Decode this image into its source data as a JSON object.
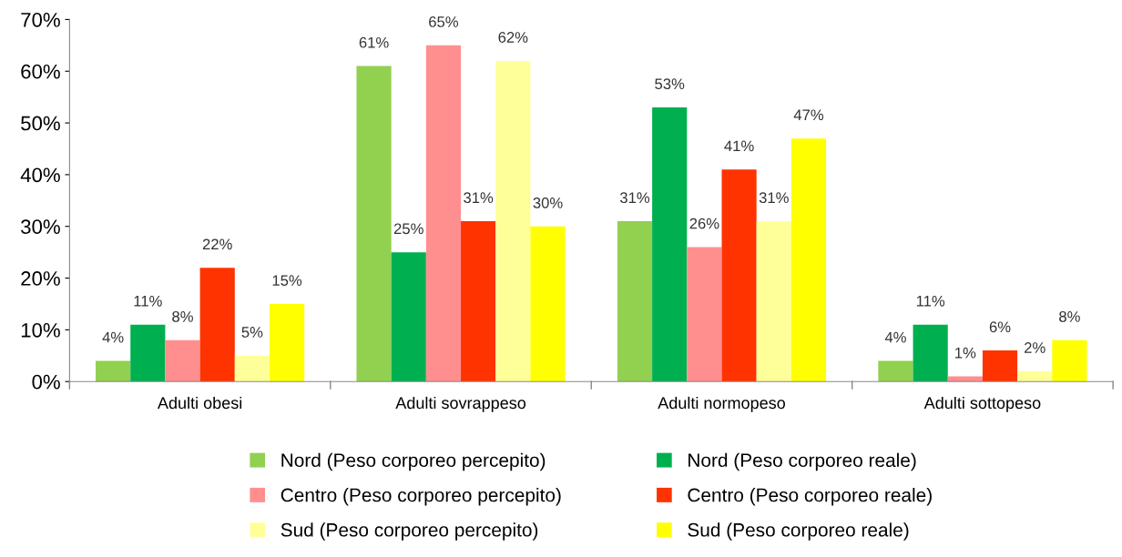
{
  "chart_data": {
    "type": "bar",
    "categories": [
      "Adulti obesi",
      "Adulti sovrappeso",
      "Adulti normopeso",
      "Adulti sottopeso"
    ],
    "ylim": [
      0,
      70
    ],
    "yticks": [
      {
        "value": 0,
        "label": "0%"
      },
      {
        "value": 10,
        "label": "10%"
      },
      {
        "value": 20,
        "label": "20%"
      },
      {
        "value": 30,
        "label": "30%"
      },
      {
        "value": 40,
        "label": "40%"
      },
      {
        "value": 50,
        "label": "50%"
      },
      {
        "value": 60,
        "label": "60%"
      },
      {
        "value": 70,
        "label": "70%"
      }
    ],
    "grid": false,
    "legend": "bottom",
    "series": [
      {
        "name": "Nord (Peso corporeo percepito)",
        "color": "#92d050",
        "values": [
          4,
          61,
          31,
          4
        ],
        "value_labels": [
          "4%",
          "61%",
          "31%",
          "4%"
        ]
      },
      {
        "name": "Nord (Peso corporeo reale)",
        "color": "#00b050",
        "values": [
          11,
          25,
          53,
          11
        ],
        "value_labels": [
          "11%",
          "25%",
          "53%",
          "11%"
        ]
      },
      {
        "name": "Centro (Peso corporeo percepito)",
        "color": "#ff8f8f",
        "values": [
          8,
          65,
          26,
          1
        ],
        "value_labels": [
          "8%",
          "65%",
          "26%",
          "1%"
        ]
      },
      {
        "name": "Centro (Peso corporeo reale)",
        "color": "#ff3300",
        "values": [
          22,
          31,
          41,
          6
        ],
        "value_labels": [
          "22%",
          "31%",
          "41%",
          "6%"
        ]
      },
      {
        "name": "Sud (Peso corporeo percepito)",
        "color": "#ffff99",
        "values": [
          5,
          62,
          31,
          2
        ],
        "value_labels": [
          "5%",
          "62%",
          "31%",
          "2%"
        ]
      },
      {
        "name": "Sud (Peso corporeo reale)",
        "color": "#ffff00",
        "values": [
          15,
          30,
          47,
          8
        ],
        "value_labels": [
          "15%",
          "30%",
          "47%",
          "8%"
        ]
      }
    ]
  }
}
